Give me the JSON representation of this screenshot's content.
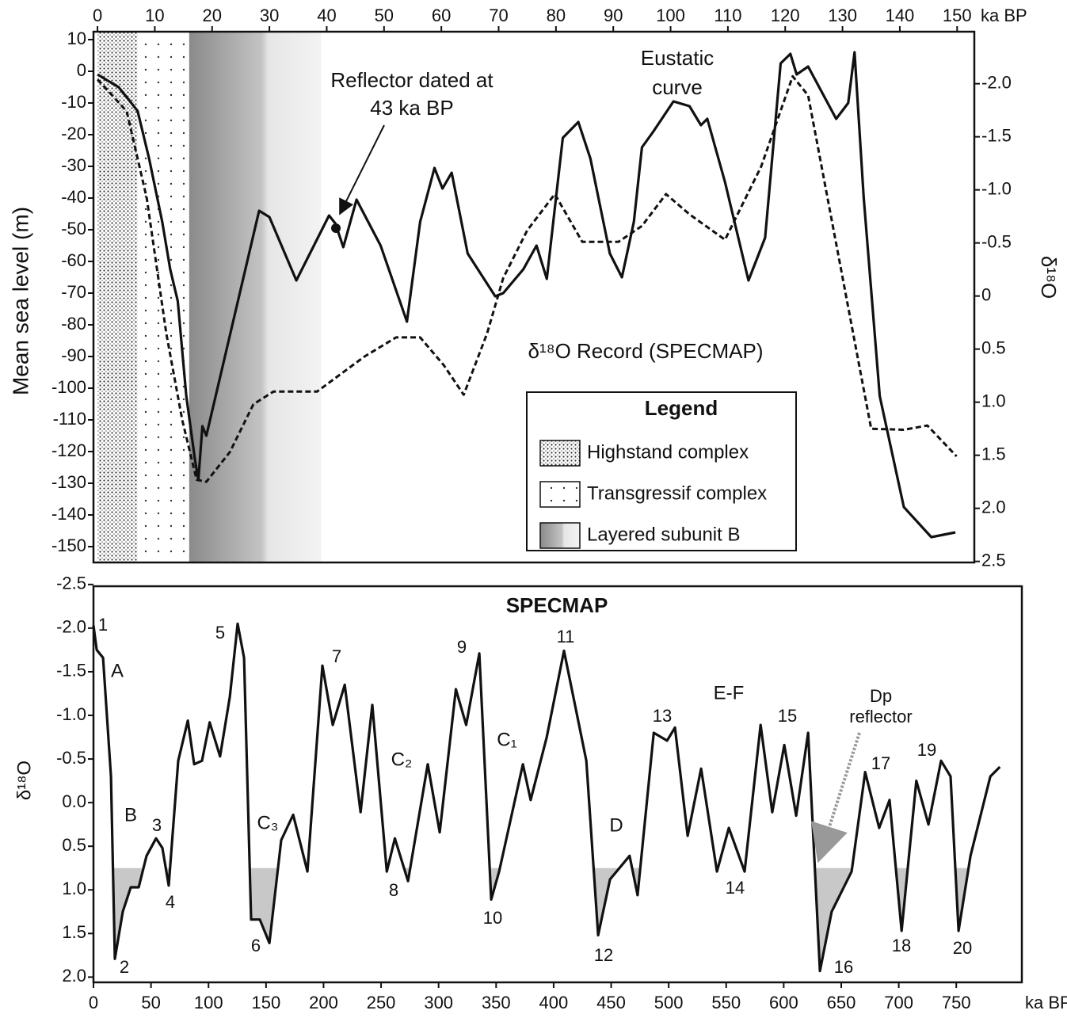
{
  "chart_data": [
    {
      "type": "line",
      "y_label": "Mean sea level (m)",
      "y2_label": "δ¹⁸O",
      "x_unit": "ka BP",
      "xlim": [
        -0.7,
        153
      ],
      "xticks": [
        0,
        10,
        20,
        30,
        40,
        50,
        60,
        70,
        80,
        90,
        100,
        110,
        120,
        130,
        140,
        150
      ],
      "ylim": [
        -155,
        12.5
      ],
      "yticks": [
        10,
        0,
        -10,
        -20,
        -30,
        -40,
        -50,
        -60,
        -70,
        -80,
        -90,
        -100,
        -110,
        -120,
        -130,
        -140,
        -150
      ],
      "y2lim": [
        2.51,
        -2.49
      ],
      "y2ticks": [
        {
          "value": -2.0,
          "label": "-2.0"
        },
        -1.5,
        {
          "value": -1.0,
          "label": "-1.0"
        },
        -0.5,
        0,
        0.5,
        {
          "value": 1.0,
          "label": "1.0"
        },
        1.5,
        {
          "value": 2.0,
          "label": "2.0"
        },
        2.5
      ],
      "series": [
        {
          "color": "#111111",
          "style": "solid",
          "x": [
            0,
            3.7,
            7,
            9,
            11.3,
            12.7,
            14,
            15.5,
            17,
            17.6,
            18.3,
            19,
            28.2,
            30,
            34.7,
            40.4,
            41.5,
            42.9,
            45.2,
            49.4,
            54,
            56.3,
            58.8,
            60.2,
            61.8,
            64.6,
            69.4,
            70.8,
            74.3,
            76.6,
            78.4,
            81.2,
            83.9,
            86,
            89.4,
            91.5,
            93.6,
            95,
            97,
            100.5,
            103.3,
            105.3,
            106.4,
            109.5,
            113.6,
            116.5,
            119.2,
            120.9,
            122,
            124,
            128.9,
            131,
            132.1,
            133.7,
            136.5,
            140.7,
            145.5,
            149.7
          ],
          "values": [
            -1,
            -5,
            -12.5,
            -27.5,
            -47.5,
            -62.5,
            -72.5,
            -102.5,
            -122.5,
            -129,
            -112,
            -115,
            -44,
            -46,
            -66,
            -45.5,
            -48,
            -55.5,
            -40.5,
            -55,
            -79,
            -47.5,
            -30.5,
            -37,
            -32,
            -57.5,
            -71,
            -70,
            -62.5,
            -55,
            -65.5,
            -21,
            -16,
            -27.5,
            -57.5,
            -65,
            -47.5,
            -24,
            -19,
            -9.5,
            -11,
            -17,
            -15,
            -35,
            -66,
            -52.5,
            2.5,
            5.5,
            -1,
            1.5,
            -15,
            -10,
            6,
            -40,
            -102.5,
            -137.5,
            -147,
            -145.5
          ]
        },
        {
          "color": "#111111",
          "style": "dashed",
          "axis": "y2",
          "x": [
            0,
            5.1,
            8.6,
            12,
            14.8,
            17.3,
            19,
            23.1,
            27.2,
            30.7,
            38.3,
            46.6,
            52.1,
            56.3,
            60.4,
            63.9,
            68,
            70.8,
            75,
            79.8,
            84.6,
            90.9,
            95,
            99.2,
            103.3,
            109.5,
            115.8,
            121.3,
            124,
            129.5,
            135,
            140.7,
            144.8,
            149.9
          ],
          "values": [
            -2.04,
            -1.74,
            -0.92,
            0.35,
            1.17,
            1.73,
            1.75,
            1.47,
            1.02,
            0.9,
            0.9,
            0.57,
            0.39,
            0.39,
            0.65,
            0.93,
            0.35,
            -0.17,
            -0.62,
            -0.96,
            -0.51,
            -0.51,
            -0.66,
            -0.96,
            -0.77,
            -0.53,
            -1.22,
            -2.07,
            -1.89,
            -0.32,
            1.25,
            1.26,
            1.22,
            1.51
          ]
        }
      ],
      "zones": [
        {
          "name": "Highstand complex",
          "from": 0,
          "to": 7
        },
        {
          "name": "Transgressif complex",
          "from": 7,
          "to": 16
        },
        {
          "name": "Layered subunit B",
          "from": 16,
          "to": 39
        }
      ],
      "legend_title": "Legend",
      "reflector_point": [
        41.6,
        -49.5
      ],
      "annotations": [
        "Reflector dated at",
        "43 ka BP",
        "Eustatic",
        "curve",
        "δ¹⁸O Record (SPECMAP)"
      ]
    },
    {
      "type": "line",
      "title": "SPECMAP",
      "y_label": "δ¹⁸O",
      "x_unit": "ka BP",
      "xlim": [
        0,
        807
      ],
      "xticks": [
        0,
        50,
        100,
        150,
        200,
        250,
        300,
        350,
        400,
        450,
        500,
        550,
        600,
        650,
        700,
        750
      ],
      "ylim": [
        2.06,
        -2.48
      ],
      "yticks": [
        -2.5,
        {
          "value": -2.0,
          "label": "-2.0"
        },
        -1.5,
        {
          "value": -1.0,
          "label": "-1.0"
        },
        -0.5,
        {
          "value": 0,
          "label": "0.0"
        },
        0.5,
        {
          "value": 1.0,
          "label": "1.0"
        },
        1.5,
        {
          "value": 2.0,
          "label": "2.0"
        }
      ],
      "series": [
        {
          "color": "#111111",
          "style": "solid",
          "x": [
            0,
            2.8,
            8.3,
            15.2,
            18.6,
            25.5,
            32.4,
            39.3,
            46.1,
            54.4,
            59.9,
            65.4,
            73.7,
            82,
            87.5,
            94.3,
            101,
            110,
            118.5,
            125.3,
            130.9,
            137,
            144.6,
            152.9,
            163.2,
            173.6,
            186,
            199,
            208,
            218.4,
            232.2,
            242.4,
            255,
            262,
            273.4,
            290.6,
            301,
            315,
            324,
            335.4,
            345.7,
            352.6,
            373.3,
            380,
            394,
            409,
            428.4,
            438.7,
            449,
            466,
            473,
            487,
            498.6,
            505.5,
            516.5,
            528.2,
            542,
            552.3,
            566,
            579.9,
            590,
            600.5,
            610.8,
            621.2,
            631.5,
            641.7,
            659,
            670.8,
            683,
            692,
            702.5,
            715.3,
            725.8,
            736.8,
            745,
            752,
            762.4,
            779.6,
            787.9
          ],
          "values": [
            -2.03,
            -1.75,
            -1.66,
            -0.3,
            1.79,
            1.25,
            0.97,
            0.97,
            0.61,
            0.41,
            0.52,
            0.95,
            -0.48,
            -0.94,
            -0.44,
            -0.48,
            -0.92,
            -0.53,
            -1.21,
            -2.05,
            -1.66,
            1.34,
            1.34,
            1.61,
            0.43,
            0.14,
            0.79,
            -1.57,
            -0.89,
            -1.35,
            0.11,
            -1.12,
            0.79,
            0.41,
            0.9,
            -0.44,
            0.34,
            -1.3,
            -0.89,
            -1.71,
            1.11,
            0.79,
            -0.44,
            -0.03,
            -0.75,
            -1.74,
            -0.48,
            1.52,
            0.88,
            0.61,
            1.06,
            -0.8,
            -0.71,
            -0.86,
            0.38,
            -0.39,
            0.79,
            0.29,
            0.79,
            -0.89,
            0.11,
            -0.66,
            0.15,
            -0.8,
            1.93,
            1.25,
            0.79,
            -0.35,
            0.29,
            -0.03,
            1.47,
            -0.25,
            0.25,
            -0.48,
            -0.3,
            1.47,
            0.61,
            -0.3,
            -0.41
          ]
        }
      ],
      "shade_below": 0.75,
      "stages": [
        1,
        2,
        3,
        4,
        5,
        6,
        7,
        8,
        9,
        10,
        11,
        12,
        13,
        14,
        15,
        16,
        17,
        18,
        19,
        20
      ],
      "annotations": [
        "A",
        "B",
        "C₃",
        "C₂",
        "C₁",
        "D",
        "E-F",
        "Dp",
        "reflector"
      ]
    }
  ]
}
